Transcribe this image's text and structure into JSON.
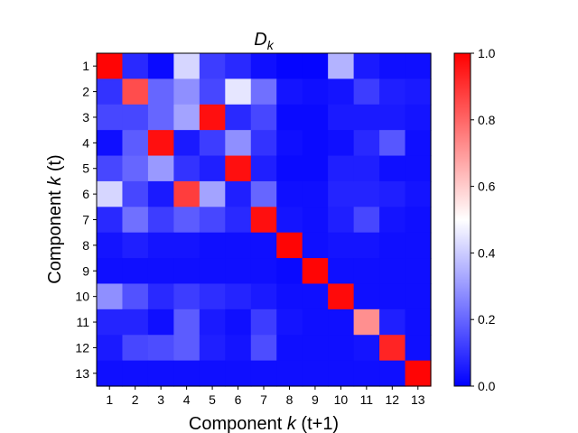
{
  "chart_data": {
    "type": "heatmap",
    "title": "D_k",
    "title_main": "D",
    "title_sub": "k",
    "xlabel": "Component k (t+1)",
    "xlabel_parts": [
      "Component ",
      "k",
      " (t+1)"
    ],
    "ylabel": "Component k (t)",
    "ylabel_parts": [
      "Component ",
      "k",
      " (t)"
    ],
    "x_categories": [
      "1",
      "2",
      "3",
      "4",
      "5",
      "6",
      "7",
      "8",
      "9",
      "10",
      "11",
      "12",
      "13"
    ],
    "y_categories": [
      "1",
      "2",
      "3",
      "4",
      "5",
      "6",
      "7",
      "8",
      "9",
      "10",
      "11",
      "12",
      "13"
    ],
    "values": [
      [
        0.99,
        0.08,
        0.02,
        0.42,
        0.12,
        0.08,
        0.03,
        0.01,
        0.01,
        0.35,
        0.05,
        0.03,
        0.03
      ],
      [
        0.1,
        0.85,
        0.2,
        0.28,
        0.14,
        0.45,
        0.22,
        0.04,
        0.03,
        0.04,
        0.12,
        0.06,
        0.05
      ],
      [
        0.14,
        0.14,
        0.2,
        0.32,
        0.97,
        0.08,
        0.14,
        0.02,
        0.02,
        0.05,
        0.05,
        0.05,
        0.04
      ],
      [
        0.03,
        0.18,
        0.97,
        0.05,
        0.12,
        0.28,
        0.1,
        0.03,
        0.02,
        0.03,
        0.08,
        0.17,
        0.03
      ],
      [
        0.14,
        0.2,
        0.3,
        0.1,
        0.06,
        0.97,
        0.06,
        0.02,
        0.02,
        0.06,
        0.06,
        0.03,
        0.03
      ],
      [
        0.42,
        0.14,
        0.05,
        0.88,
        0.32,
        0.06,
        0.2,
        0.03,
        0.03,
        0.07,
        0.07,
        0.06,
        0.04
      ],
      [
        0.08,
        0.22,
        0.12,
        0.18,
        0.14,
        0.08,
        0.97,
        0.04,
        0.03,
        0.06,
        0.14,
        0.04,
        0.03
      ],
      [
        0.04,
        0.06,
        0.04,
        0.04,
        0.03,
        0.03,
        0.03,
        0.99,
        0.03,
        0.04,
        0.04,
        0.03,
        0.03
      ],
      [
        0.03,
        0.03,
        0.03,
        0.03,
        0.03,
        0.03,
        0.03,
        0.02,
        0.99,
        0.03,
        0.03,
        0.03,
        0.03
      ],
      [
        0.28,
        0.16,
        0.08,
        0.12,
        0.09,
        0.07,
        0.05,
        0.03,
        0.03,
        0.98,
        0.03,
        0.03,
        0.03
      ],
      [
        0.07,
        0.07,
        0.03,
        0.18,
        0.05,
        0.03,
        0.12,
        0.04,
        0.03,
        0.03,
        0.72,
        0.06,
        0.03
      ],
      [
        0.05,
        0.14,
        0.15,
        0.18,
        0.06,
        0.04,
        0.15,
        0.03,
        0.03,
        0.03,
        0.04,
        0.93,
        0.03
      ],
      [
        0.03,
        0.03,
        0.03,
        0.03,
        0.03,
        0.03,
        0.03,
        0.03,
        0.03,
        0.03,
        0.03,
        0.03,
        0.99
      ]
    ],
    "colormap": "bwr",
    "colors": {
      "low": "#0000ff",
      "mid": "#ffffff",
      "high": "#ff0000"
    },
    "colorbar": {
      "range": [
        0.0,
        1.0
      ],
      "ticks": [
        0.0,
        0.2,
        0.4,
        0.6,
        0.8,
        1.0
      ],
      "tick_labels": [
        "0.0",
        "0.2",
        "0.4",
        "0.6",
        "0.8",
        "1.0"
      ],
      "placement": "right"
    },
    "grid": false
  }
}
